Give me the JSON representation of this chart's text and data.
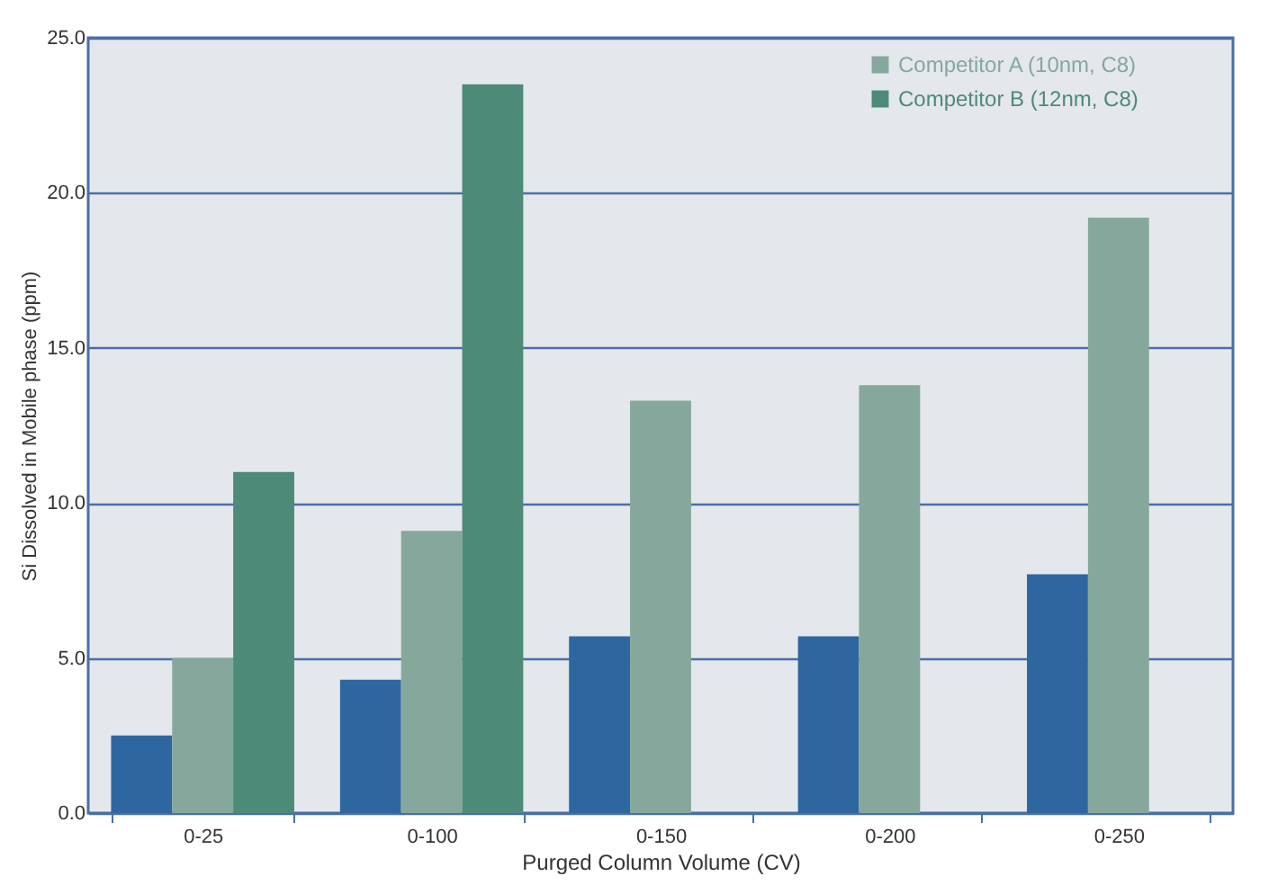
{
  "chart_data": {
    "type": "bar",
    "xlabel": "Purged Column Volume (CV)",
    "ylabel": "Si Dissolved in Mobile phase (ppm)",
    "categories": [
      "0-25",
      "0-100",
      "0-150",
      "0-200",
      "0-250"
    ],
    "series": [
      {
        "color": "#2e67a0",
        "values": [
          2.5,
          4.3,
          5.7,
          5.7,
          7.7
        ]
      },
      {
        "name": "Competitor A (10nm, C8)",
        "color": "#86a89c",
        "values": [
          5.0,
          9.1,
          13.3,
          13.8,
          19.2
        ]
      },
      {
        "name": "Competitor B (12nm, C8)",
        "color": "#4e8a78",
        "values": [
          11.0,
          23.5,
          null,
          null,
          null
        ]
      }
    ],
    "ylim": [
      0,
      25
    ],
    "yticks": [
      {
        "value": 0,
        "label": "0.0"
      },
      {
        "value": 5,
        "label": "5.0"
      },
      {
        "value": 10,
        "label": "10.0"
      },
      {
        "value": 15,
        "label": "15.0"
      },
      {
        "value": 20,
        "label": "20.0"
      },
      {
        "value": 25,
        "label": "25.0"
      }
    ],
    "grid": "y",
    "legend": "top right"
  }
}
